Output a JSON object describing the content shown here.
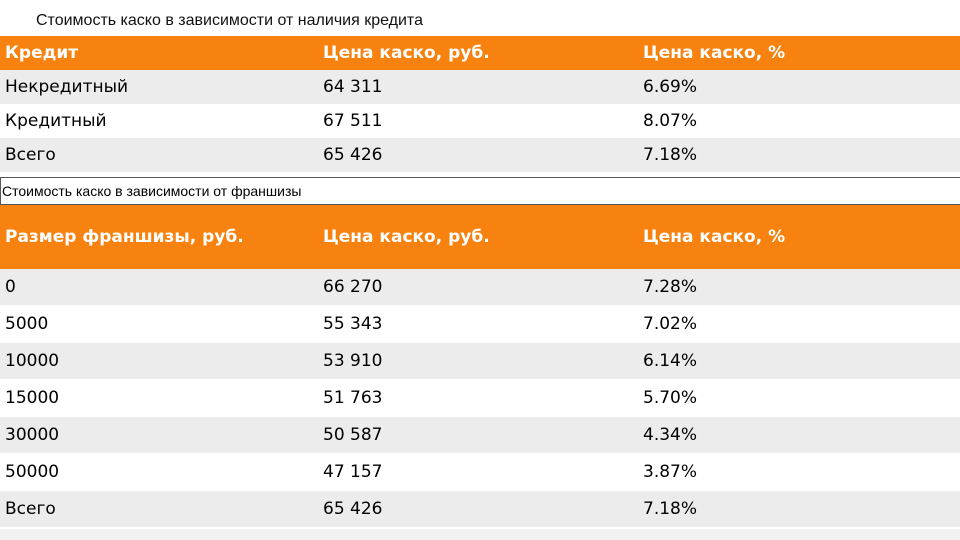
{
  "table1": {
    "caption": "Стоимость каско в зависимости от наличия кредита",
    "header": [
      "Кредит",
      "Цена каско, руб.",
      "Цена каско, %"
    ],
    "rows": [
      [
        "Некредитный",
        "64 311",
        "6.69%"
      ],
      [
        "Кредитный",
        "67 511",
        "8.07%"
      ],
      [
        "Всего",
        "65 426",
        "7.18%"
      ]
    ]
  },
  "table2": {
    "caption": "Стоимость каско в зависимости от франшизы",
    "header": [
      "Размер франшизы, руб.",
      "Цена каско, руб.",
      "Цена каско, %"
    ],
    "rows": [
      [
        "0",
        "66 270",
        "7.28%"
      ],
      [
        "5000",
        "55 343",
        "7.02%"
      ],
      [
        "10000",
        "53 910",
        "6.14%"
      ],
      [
        "15000",
        "51 763",
        "5.70%"
      ],
      [
        "30000",
        "50 587",
        "4.34%"
      ],
      [
        "50000",
        "47 157",
        "3.87%"
      ],
      [
        "Всего",
        "65 426",
        "7.18%"
      ]
    ]
  },
  "colors": {
    "header_bg": "#f7820f",
    "row_alt_bg": "#ececec"
  }
}
